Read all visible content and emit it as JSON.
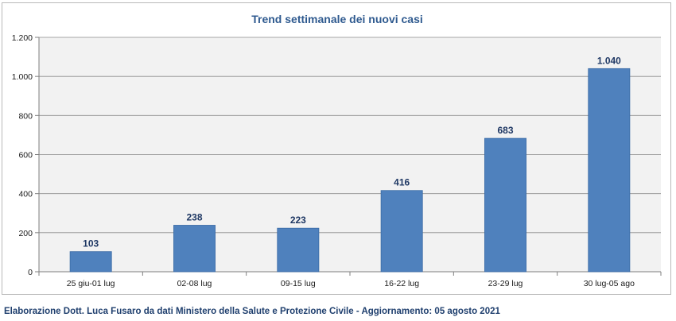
{
  "chart_data": {
    "type": "bar",
    "title": "Trend settimanale dei nuovi casi",
    "categories": [
      "25 giu-01 lug",
      "02-08 lug",
      "09-15 lug",
      "16-22 lug",
      "23-29 lug",
      "30 lug-05 ago"
    ],
    "values": [
      103,
      238,
      223,
      416,
      683,
      1040
    ],
    "value_labels": [
      "103",
      "238",
      "223",
      "416",
      "683",
      "1.040"
    ],
    "ylim": [
      0,
      1200
    ],
    "yticks": [
      0,
      200,
      400,
      600,
      800,
      1000,
      1200
    ],
    "ytick_labels": [
      "0",
      "200",
      "400",
      "600",
      "800",
      "1.000",
      "1.200"
    ],
    "grid": true,
    "colors": {
      "bar": "#4f81bd",
      "bar_edge": "#3a6aa5",
      "plot_bg": "#f2f2f2",
      "title": "#2f5a8f",
      "value_label": "#1f3864"
    }
  },
  "footer": "Elaborazione Dott. Luca Fusaro da dati Ministero della Salute e Protezione Civile - Aggiornamento: 05 agosto 2021"
}
